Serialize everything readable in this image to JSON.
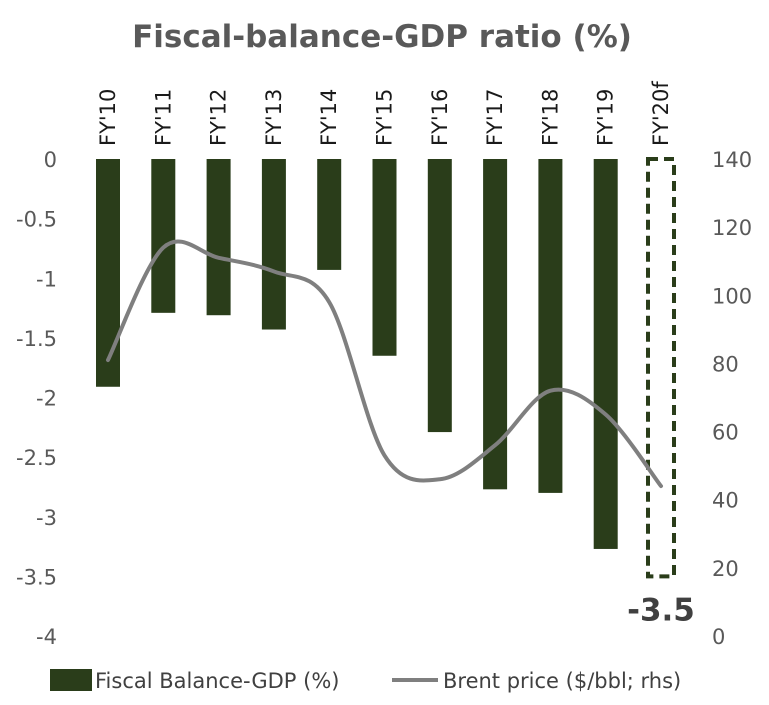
{
  "chart_data": {
    "type": "bar",
    "title": "Fiscal-balance-GDP ratio (%)",
    "categories": [
      "FY'10",
      "FY'11",
      "FY'12",
      "FY'13",
      "FY'14",
      "FY'15",
      "FY'16",
      "FY'17",
      "FY'18",
      "FY'19",
      "FY'20f"
    ],
    "series": [
      {
        "name": "Fiscal Balance-GDP (%)",
        "type": "bar",
        "axis": "left",
        "color": "#2a3d1a",
        "values": [
          -1.91,
          -1.29,
          -1.31,
          -1.43,
          -0.93,
          -1.65,
          -2.29,
          -2.77,
          -2.8,
          -3.27,
          -3.5
        ],
        "forecast_index": 10
      },
      {
        "name": "Brent price ($/bbl; rhs)",
        "type": "line",
        "axis": "right",
        "color": "#7f7f7f",
        "values": [
          81,
          114,
          111,
          107,
          98,
          53,
          46,
          56,
          72,
          65,
          44
        ]
      }
    ],
    "y_left": {
      "min": -4,
      "max": 0,
      "ticks": [
        "0",
        "-0.5",
        "-1",
        "-1.5",
        "-2",
        "-2.5",
        "-3",
        "-3.5",
        "-4"
      ],
      "tick_values": [
        0,
        -0.5,
        -1,
        -1.5,
        -2,
        -2.5,
        -3,
        -3.5,
        -4
      ]
    },
    "y_right": {
      "min": 0,
      "max": 140,
      "ticks": [
        "140",
        "120",
        "100",
        "80",
        "60",
        "40",
        "20",
        "0"
      ],
      "tick_values": [
        140,
        120,
        100,
        80,
        60,
        40,
        20,
        0
      ]
    },
    "annotation": {
      "text": "-3.5",
      "category": "FY'20f"
    },
    "grid": false,
    "legend_position": "bottom"
  }
}
